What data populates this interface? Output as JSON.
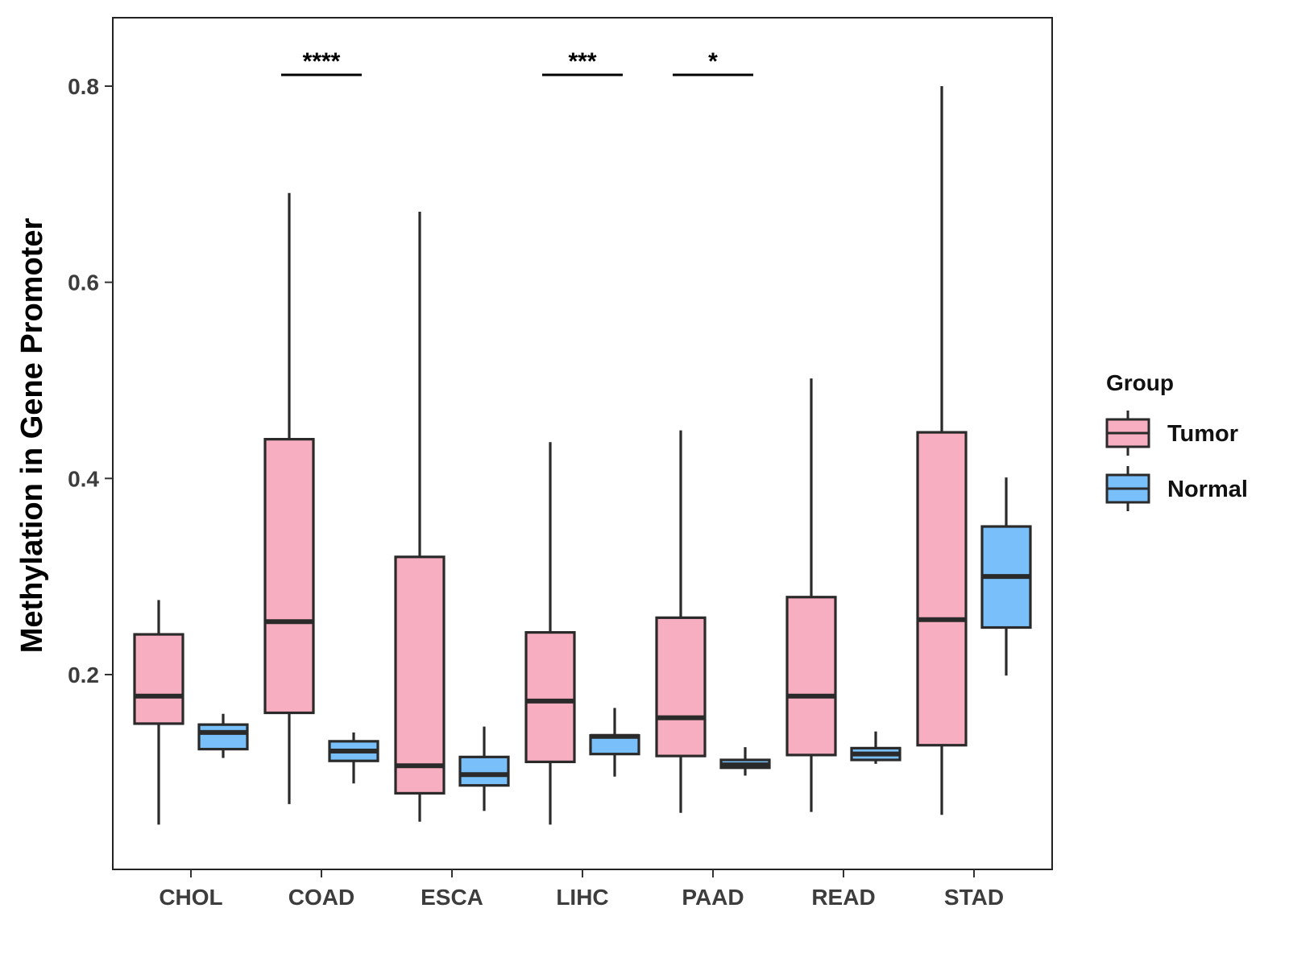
{
  "chart_data": {
    "type": "boxplot",
    "title": "",
    "xlabel": "",
    "ylabel": "Methylation in Gene Promoter",
    "ylim": [
      0.0,
      0.865
    ],
    "yticks": [
      0.2,
      0.4,
      0.6,
      0.8
    ],
    "ytick_labels": [
      "0.2",
      "0.4",
      "0.6",
      "0.8"
    ],
    "grid": false,
    "categories": [
      "CHOL",
      "COAD",
      "ESCA",
      "LIHC",
      "PAAD",
      "READ",
      "STAD"
    ],
    "legend": {
      "title": "Group",
      "position": "right",
      "entries": [
        "Tumor",
        "Normal"
      ]
    },
    "series": [
      {
        "name": "Tumor",
        "color": "#f8aec1",
        "boxes": [
          {
            "min": 0.047,
            "q1": 0.15,
            "median": 0.178,
            "q3": 0.241,
            "max": 0.276
          },
          {
            "min": 0.068,
            "q1": 0.161,
            "median": 0.254,
            "q3": 0.44,
            "max": 0.691
          },
          {
            "min": 0.05,
            "q1": 0.079,
            "median": 0.107,
            "q3": 0.32,
            "max": 0.672
          },
          {
            "min": 0.047,
            "q1": 0.111,
            "median": 0.173,
            "q3": 0.243,
            "max": 0.437
          },
          {
            "min": 0.059,
            "q1": 0.117,
            "median": 0.156,
            "q3": 0.258,
            "max": 0.449
          },
          {
            "min": 0.06,
            "q1": 0.118,
            "median": 0.178,
            "q3": 0.279,
            "max": 0.502
          },
          {
            "min": 0.057,
            "q1": 0.128,
            "median": 0.256,
            "q3": 0.447,
            "max": 0.8
          }
        ]
      },
      {
        "name": "Normal",
        "color": "#79bff9",
        "boxes": [
          {
            "min": 0.115,
            "q1": 0.124,
            "median": 0.141,
            "q3": 0.149,
            "max": 0.16
          },
          {
            "min": 0.089,
            "q1": 0.112,
            "median": 0.122,
            "q3": 0.132,
            "max": 0.141
          },
          {
            "min": 0.061,
            "q1": 0.087,
            "median": 0.098,
            "q3": 0.116,
            "max": 0.147
          },
          {
            "min": 0.096,
            "q1": 0.119,
            "median": 0.137,
            "q3": 0.138,
            "max": 0.166
          },
          {
            "min": 0.097,
            "q1": 0.105,
            "median": 0.108,
            "q3": 0.113,
            "max": 0.126
          },
          {
            "min": 0.109,
            "q1": 0.113,
            "median": 0.119,
            "q3": 0.125,
            "max": 0.142
          },
          {
            "min": 0.199,
            "q1": 0.248,
            "median": 0.3,
            "q3": 0.351,
            "max": 0.401
          }
        ]
      }
    ],
    "annotations": [
      {
        "category": "COAD",
        "label": "****"
      },
      {
        "category": "LIHC",
        "label": "***"
      },
      {
        "category": "PAAD",
        "label": "*"
      }
    ]
  }
}
